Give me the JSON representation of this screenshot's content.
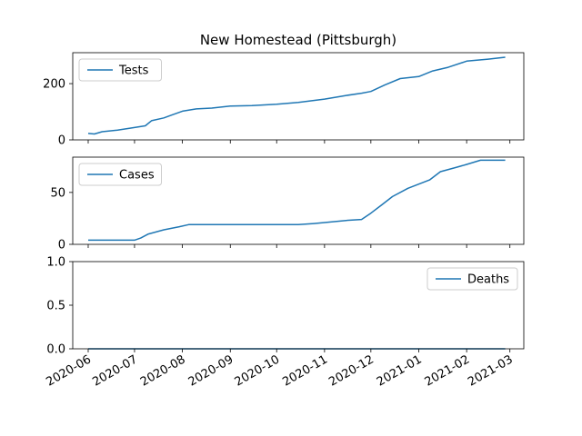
{
  "chart_data": {
    "title": "New Homestead (Pittsburgh)",
    "type": "line",
    "color": "#1f77b4",
    "x_tick_labels": [
      "2020-06",
      "2020-07",
      "2020-08",
      "2020-09",
      "2020-10",
      "2020-11",
      "2020-12",
      "2021-01",
      "2021-02",
      "2021-03"
    ],
    "x_ticks": [
      "2020-06-01",
      "2020-07-01",
      "2020-08-01",
      "2020-09-01",
      "2020-10-01",
      "2020-11-01",
      "2020-12-01",
      "2021-01-01",
      "2021-02-01",
      "2021-03-01"
    ],
    "xlim": [
      "2020-05-22",
      "2021-03-10"
    ],
    "panels": [
      {
        "name": "Tests",
        "legend": "upper left",
        "ylim": [
          0,
          310
        ],
        "yticks": [
          0,
          200
        ],
        "ytick_labels": [
          "0",
          "200"
        ],
        "x": [
          "2020-06-01",
          "2020-06-05",
          "2020-06-10",
          "2020-06-20",
          "2020-07-01",
          "2020-07-08",
          "2020-07-12",
          "2020-07-20",
          "2020-07-25",
          "2020-08-01",
          "2020-08-10",
          "2020-08-20",
          "2020-09-01",
          "2020-09-15",
          "2020-10-01",
          "2020-10-15",
          "2020-11-01",
          "2020-11-15",
          "2020-11-25",
          "2020-12-01",
          "2020-12-10",
          "2020-12-20",
          "2021-01-01",
          "2021-01-10",
          "2021-01-20",
          "2021-02-01",
          "2021-02-15",
          "2021-02-26"
        ],
        "y": [
          23,
          21,
          29,
          35,
          44,
          50,
          68,
          78,
          88,
          102,
          110,
          113,
          120,
          122,
          127,
          133,
          145,
          158,
          166,
          172,
          195,
          218,
          225,
          245,
          258,
          280,
          287,
          294
        ]
      },
      {
        "name": "Cases",
        "legend": "upper left",
        "ylim": [
          0,
          84
        ],
        "yticks": [
          0,
          50
        ],
        "ytick_labels": [
          "0",
          "50"
        ],
        "x": [
          "2020-06-01",
          "2020-06-15",
          "2020-07-01",
          "2020-07-05",
          "2020-07-10",
          "2020-07-20",
          "2020-07-30",
          "2020-08-05",
          "2020-08-20",
          "2020-09-15",
          "2020-10-15",
          "2020-10-25",
          "2020-11-01",
          "2020-11-15",
          "2020-11-25",
          "2020-12-01",
          "2020-12-08",
          "2020-12-15",
          "2020-12-25",
          "2021-01-01",
          "2021-01-08",
          "2021-01-15",
          "2021-01-25",
          "2021-02-01",
          "2021-02-10",
          "2021-02-26"
        ],
        "y": [
          4,
          4,
          4,
          6,
          10,
          14,
          17,
          19,
          19,
          19,
          19,
          20,
          21,
          23,
          24,
          30,
          38,
          46,
          54,
          58,
          62,
          70,
          74,
          77,
          81,
          81
        ]
      },
      {
        "name": "Deaths",
        "legend": "upper right",
        "ylim": [
          0,
          1
        ],
        "yticks": [
          0,
          0.5,
          1
        ],
        "ytick_labels": [
          "0.0",
          "0.5",
          "1.0"
        ],
        "x": [
          "2020-06-01",
          "2021-02-26"
        ],
        "y": [
          0,
          0
        ]
      }
    ]
  }
}
